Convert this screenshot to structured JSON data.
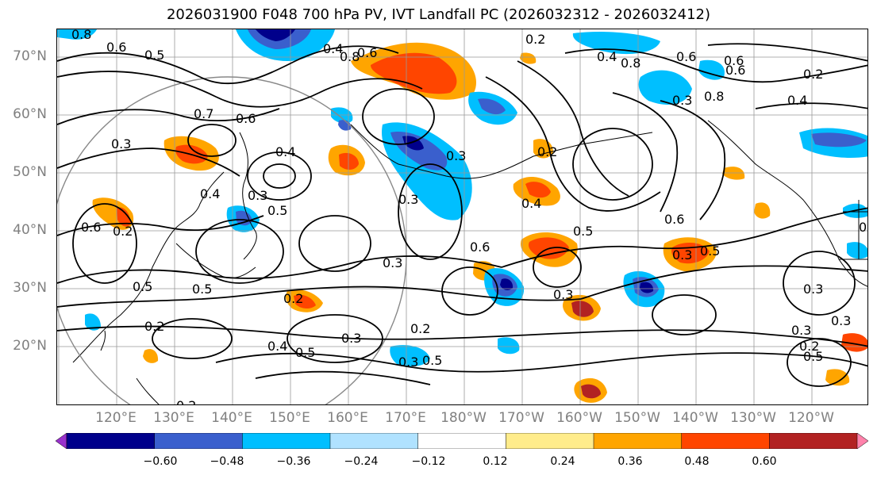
{
  "title": "2026031900 F048 700 hPa PV, IVT Landfall PC (2026032312 - 2026032412)",
  "lat_labels": [
    "70°N",
    "60°N",
    "50°N",
    "40°N",
    "30°N",
    "20°N"
  ],
  "lon_labels": [
    "120°E",
    "130°E",
    "140°E",
    "150°E",
    "160°E",
    "170°E",
    "180°W",
    "170°W",
    "160°W",
    "150°W",
    "140°W",
    "130°W",
    "120°W"
  ],
  "colorbar": {
    "colors": [
      "#9932cc",
      "#00008b",
      "#3a5fcd",
      "#00bfff",
      "#b0e2ff",
      "#ffffff",
      "#ffec8b",
      "#ffa500",
      "#ff4500",
      "#b22222",
      "#ff82ab"
    ],
    "tick_labels": [
      "−0.60",
      "−0.48",
      "−0.36",
      "−0.24",
      "−0.12",
      "0.12",
      "0.24",
      "0.36",
      "0.48",
      "0.60"
    ]
  },
  "contour_labels": [
    "0.8",
    "0.6",
    "0.5",
    "0.2",
    "0.4",
    "0.6",
    "0.8",
    "0.8",
    "0.6",
    "0.7",
    "0.6",
    "0.3",
    "0.4",
    "0.3",
    "0.6",
    "0.4",
    "0.3",
    "0.5",
    "0.2",
    "0.5",
    "0.3",
    "0.5",
    "0.2",
    "0.2",
    "0.4",
    "0.5",
    "0.3",
    "0.2",
    "0.3",
    "0.5",
    "0.6",
    "0.3",
    "0.4",
    "0.3",
    "0.5",
    "0.6",
    "0.3",
    "0.5",
    "0.3",
    "0.2",
    "0.3",
    "0.3",
    "0.2",
    "0.5",
    "0.3",
    "0.8",
    "0.4",
    "0.2",
    "0.6",
    "0.3",
    "0.2",
    "0.4",
    "0.6"
  ]
}
